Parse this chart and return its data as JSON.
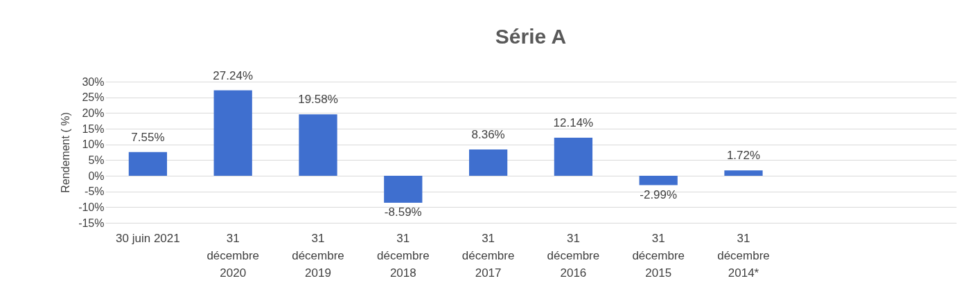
{
  "chart_data": {
    "type": "bar",
    "title": "Série A",
    "ylabel": "Rendement ( %)",
    "categories": [
      "30 juin 2021",
      "31\ndécembre\n2020",
      "31\ndécembre\n2019",
      "31\ndécembre\n2018",
      "31\ndécembre\n2017",
      "31\ndécembre\n2016",
      "31\ndécembre\n2015",
      "31\ndécembre\n2014*",
      null,
      null
    ],
    "values": [
      7.55,
      27.24,
      19.58,
      -8.59,
      8.36,
      12.14,
      -2.99,
      1.72,
      null,
      null
    ],
    "value_labels": [
      "7.55%",
      "27.24%",
      "19.58%",
      "-8.59%",
      "8.36%",
      "12.14%",
      "-2.99%",
      "1.72%",
      null,
      null
    ],
    "color": "#3f6fcf",
    "ylim": [
      -15,
      30
    ],
    "yticks": [
      {
        "value": -15,
        "label": "-15%"
      },
      {
        "value": -10,
        "label": "-10%"
      },
      {
        "value": -5,
        "label": "-5%"
      },
      {
        "value": 0,
        "label": "0%"
      },
      {
        "value": 5,
        "label": "5%"
      },
      {
        "value": 10,
        "label": "10%"
      },
      {
        "value": 15,
        "label": "15%"
      },
      {
        "value": 20,
        "label": "20%"
      },
      {
        "value": 25,
        "label": "25%"
      },
      {
        "value": 30,
        "label": "30%"
      }
    ],
    "grid": "y"
  }
}
